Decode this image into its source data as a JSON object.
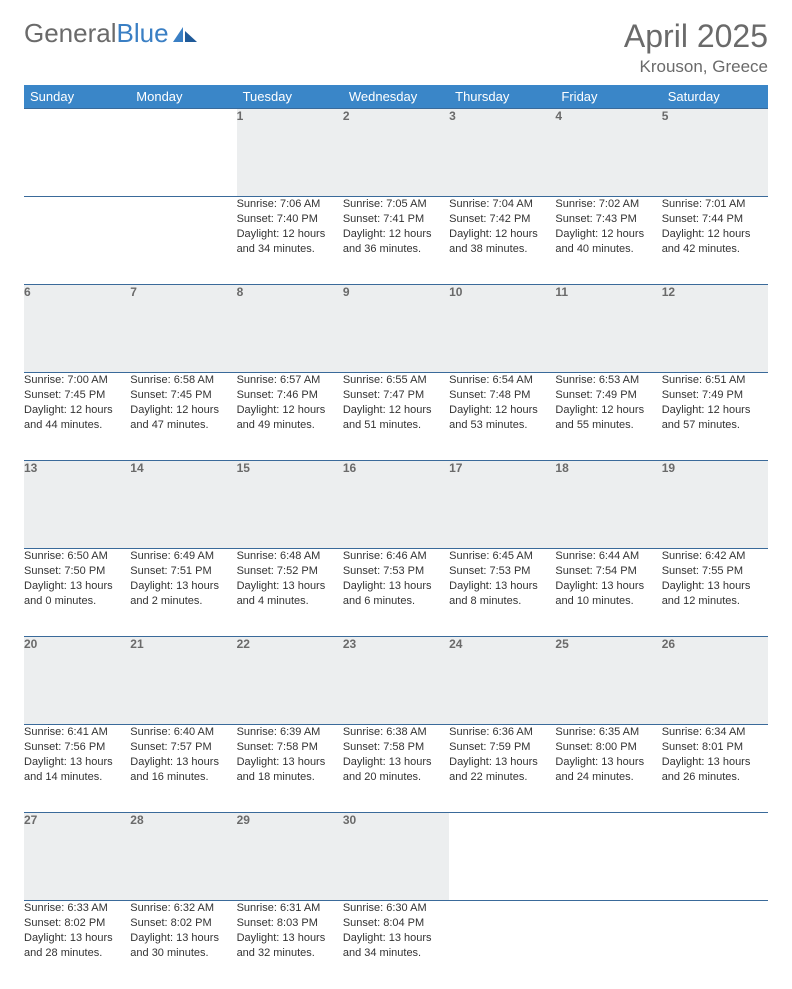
{
  "logo": {
    "text_gray": "General",
    "text_blue": "Blue"
  },
  "header": {
    "month_title": "April 2025",
    "location": "Krouson, Greece"
  },
  "colors": {
    "header_blue": "#3a86c8",
    "rule_blue": "#3a6a9a",
    "daynum_bg": "#eceeef",
    "text_gray": "#6a6a6a",
    "logo_blue": "#3a7fc4"
  },
  "weekday_headers": [
    "Sunday",
    "Monday",
    "Tuesday",
    "Wednesday",
    "Thursday",
    "Friday",
    "Saturday"
  ],
  "weeks": [
    [
      null,
      null,
      {
        "n": "1",
        "sr": "7:06 AM",
        "ss": "7:40 PM",
        "dl": "12 hours and 34 minutes."
      },
      {
        "n": "2",
        "sr": "7:05 AM",
        "ss": "7:41 PM",
        "dl": "12 hours and 36 minutes."
      },
      {
        "n": "3",
        "sr": "7:04 AM",
        "ss": "7:42 PM",
        "dl": "12 hours and 38 minutes."
      },
      {
        "n": "4",
        "sr": "7:02 AM",
        "ss": "7:43 PM",
        "dl": "12 hours and 40 minutes."
      },
      {
        "n": "5",
        "sr": "7:01 AM",
        "ss": "7:44 PM",
        "dl": "12 hours and 42 minutes."
      }
    ],
    [
      {
        "n": "6",
        "sr": "7:00 AM",
        "ss": "7:45 PM",
        "dl": "12 hours and 44 minutes."
      },
      {
        "n": "7",
        "sr": "6:58 AM",
        "ss": "7:45 PM",
        "dl": "12 hours and 47 minutes."
      },
      {
        "n": "8",
        "sr": "6:57 AM",
        "ss": "7:46 PM",
        "dl": "12 hours and 49 minutes."
      },
      {
        "n": "9",
        "sr": "6:55 AM",
        "ss": "7:47 PM",
        "dl": "12 hours and 51 minutes."
      },
      {
        "n": "10",
        "sr": "6:54 AM",
        "ss": "7:48 PM",
        "dl": "12 hours and 53 minutes."
      },
      {
        "n": "11",
        "sr": "6:53 AM",
        "ss": "7:49 PM",
        "dl": "12 hours and 55 minutes."
      },
      {
        "n": "12",
        "sr": "6:51 AM",
        "ss": "7:49 PM",
        "dl": "12 hours and 57 minutes."
      }
    ],
    [
      {
        "n": "13",
        "sr": "6:50 AM",
        "ss": "7:50 PM",
        "dl": "13 hours and 0 minutes."
      },
      {
        "n": "14",
        "sr": "6:49 AM",
        "ss": "7:51 PM",
        "dl": "13 hours and 2 minutes."
      },
      {
        "n": "15",
        "sr": "6:48 AM",
        "ss": "7:52 PM",
        "dl": "13 hours and 4 minutes."
      },
      {
        "n": "16",
        "sr": "6:46 AM",
        "ss": "7:53 PM",
        "dl": "13 hours and 6 minutes."
      },
      {
        "n": "17",
        "sr": "6:45 AM",
        "ss": "7:53 PM",
        "dl": "13 hours and 8 minutes."
      },
      {
        "n": "18",
        "sr": "6:44 AM",
        "ss": "7:54 PM",
        "dl": "13 hours and 10 minutes."
      },
      {
        "n": "19",
        "sr": "6:42 AM",
        "ss": "7:55 PM",
        "dl": "13 hours and 12 minutes."
      }
    ],
    [
      {
        "n": "20",
        "sr": "6:41 AM",
        "ss": "7:56 PM",
        "dl": "13 hours and 14 minutes."
      },
      {
        "n": "21",
        "sr": "6:40 AM",
        "ss": "7:57 PM",
        "dl": "13 hours and 16 minutes."
      },
      {
        "n": "22",
        "sr": "6:39 AM",
        "ss": "7:58 PM",
        "dl": "13 hours and 18 minutes."
      },
      {
        "n": "23",
        "sr": "6:38 AM",
        "ss": "7:58 PM",
        "dl": "13 hours and 20 minutes."
      },
      {
        "n": "24",
        "sr": "6:36 AM",
        "ss": "7:59 PM",
        "dl": "13 hours and 22 minutes."
      },
      {
        "n": "25",
        "sr": "6:35 AM",
        "ss": "8:00 PM",
        "dl": "13 hours and 24 minutes."
      },
      {
        "n": "26",
        "sr": "6:34 AM",
        "ss": "8:01 PM",
        "dl": "13 hours and 26 minutes."
      }
    ],
    [
      {
        "n": "27",
        "sr": "6:33 AM",
        "ss": "8:02 PM",
        "dl": "13 hours and 28 minutes."
      },
      {
        "n": "28",
        "sr": "6:32 AM",
        "ss": "8:02 PM",
        "dl": "13 hours and 30 minutes."
      },
      {
        "n": "29",
        "sr": "6:31 AM",
        "ss": "8:03 PM",
        "dl": "13 hours and 32 minutes."
      },
      {
        "n": "30",
        "sr": "6:30 AM",
        "ss": "8:04 PM",
        "dl": "13 hours and 34 minutes."
      },
      null,
      null,
      null
    ]
  ],
  "labels": {
    "sunrise": "Sunrise: ",
    "sunset": "Sunset: ",
    "daylight": "Daylight: "
  }
}
